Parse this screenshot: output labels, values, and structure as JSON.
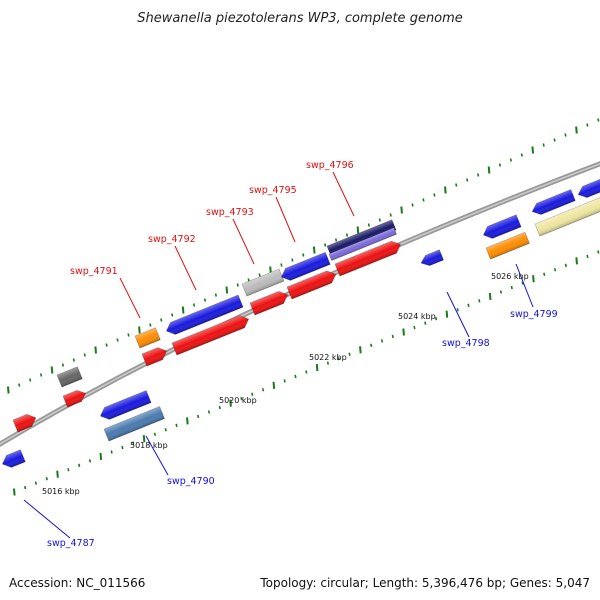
{
  "title": "Shewanella piezotolerans WP3, complete genome",
  "footer": {
    "accession": "Accession: NC_011566",
    "summary": "Topology: circular; Length: 5,396,476 bp; Genes: 5,047"
  },
  "colors": {
    "backbone": "#888888",
    "tick": "#1a7a1a",
    "forward_label": "#dd1111",
    "reverse_label": "#1111dd",
    "blue": "#1a1ae0",
    "red": "#ee1111",
    "orange": "#ff8c00",
    "grey": "#666666",
    "light_grey": "#bbbbbb",
    "navy": "#1a1a66",
    "violet": "#7a6ad8",
    "steel": "#4a7ab0",
    "khaki": "#efe6a0"
  },
  "scale_labels": [
    "5016 kbp",
    "5018 kbp",
    "5020 kbp",
    "5022 kbp",
    "5024 kbp",
    "5026 kbp"
  ],
  "forward_labels": [
    "swp_4791",
    "swp_4792",
    "swp_4793",
    "swp_4795",
    "swp_4796"
  ],
  "reverse_labels": [
    "swp_4787",
    "swp_4790",
    "swp_4798",
    "swp_4799"
  ]
}
